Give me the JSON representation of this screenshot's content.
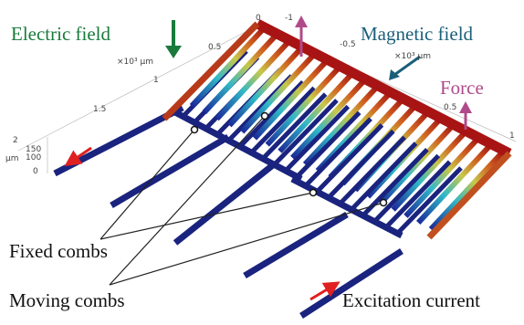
{
  "annotations": {
    "electric_field": "Electric field",
    "magnetic_field": "Magnetic field",
    "force": "Force",
    "fixed_combs": "Fixed combs",
    "moving_combs": "Moving combs",
    "excitation_current": "Excitation current"
  },
  "axes": {
    "x_ticks": [
      "0",
      "0.5",
      "1",
      "1.5",
      "2"
    ],
    "x_unit": "×10³ μm",
    "y_ticks": [
      "-1",
      "-0.5",
      "0.5",
      "1"
    ],
    "y_unit": "×10³ μm",
    "z_ticks": [
      "150",
      "100",
      "0"
    ],
    "z_unit": "μm"
  }
}
